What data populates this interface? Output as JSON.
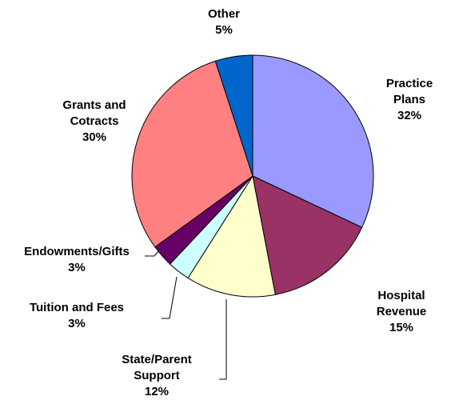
{
  "chart_data": {
    "type": "pie",
    "categories": [
      "Practice Plans",
      "Hospital Revenue",
      "State/Parent Support",
      "Tuition and Fees",
      "Endowments/Gifts",
      "Grants and Cotracts",
      "Other"
    ],
    "values": [
      32,
      15,
      12,
      3,
      3,
      30,
      5
    ],
    "value_labels": [
      "32%",
      "15%",
      "12%",
      "3%",
      "3%",
      "30%",
      "5%"
    ],
    "colors": [
      "#9999ff",
      "#993366",
      "#ffffcc",
      "#ccffff",
      "#660066",
      "#ff8080",
      "#0066cc"
    ]
  }
}
